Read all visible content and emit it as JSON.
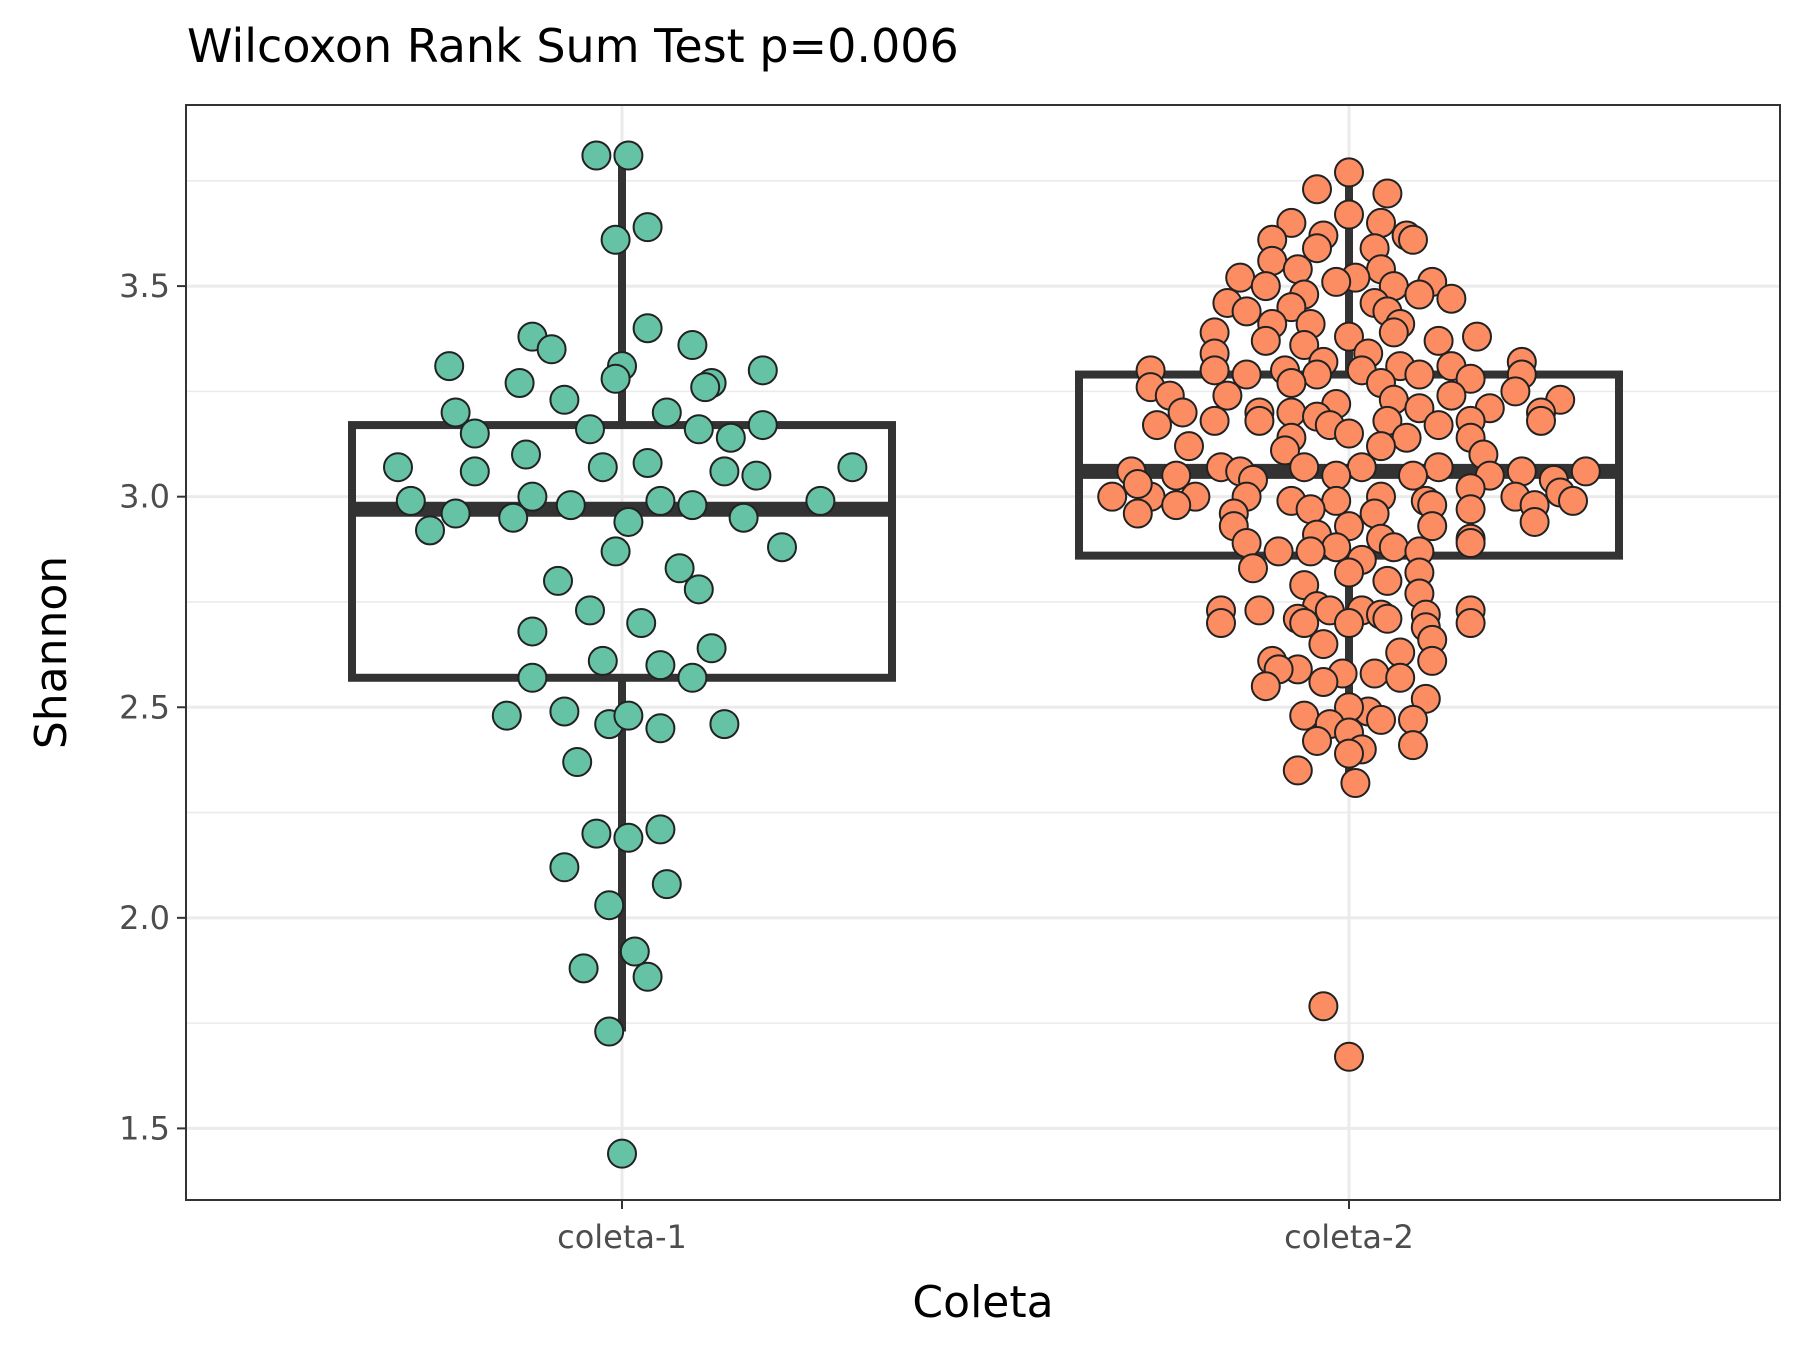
{
  "chart_data": {
    "type": "box",
    "title": "Wilcoxon Rank Sum Test p=0.006",
    "xlabel": "Coleta",
    "ylabel": "Shannon",
    "ylim": [
      1.33,
      3.93
    ],
    "yticks": [
      "1.5",
      "2.0",
      "2.5",
      "3.0",
      "3.5"
    ],
    "grid": true,
    "legend": "none",
    "categories": [
      "coleta-1",
      "coleta-2"
    ],
    "series": [
      {
        "category": "coleta-1",
        "fill_color": "#66c2a5",
        "box": {
          "lower_whisker": 1.73,
          "q1": 2.57,
          "median": 2.97,
          "q3": 3.17,
          "upper_whisker": 3.8
        },
        "points": [
          [
            -0.04,
            3.81
          ],
          [
            0.01,
            3.81
          ],
          [
            0.04,
            3.64
          ],
          [
            -0.01,
            3.61
          ],
          [
            0.04,
            3.4
          ],
          [
            -0.27,
            3.31
          ],
          [
            0.11,
            3.36
          ],
          [
            -0.14,
            3.38
          ],
          [
            -0.11,
            3.35
          ],
          [
            -0.16,
            3.27
          ],
          [
            0.14,
            3.27
          ],
          [
            -0.09,
            3.23
          ],
          [
            0.0,
            3.31
          ],
          [
            -0.01,
            3.28
          ],
          [
            0.22,
            3.3
          ],
          [
            0.22,
            3.17
          ],
          [
            0.13,
            3.26
          ],
          [
            -0.26,
            3.2
          ],
          [
            -0.23,
            3.15
          ],
          [
            0.07,
            3.2
          ],
          [
            -0.05,
            3.16
          ],
          [
            0.12,
            3.16
          ],
          [
            0.21,
            3.05
          ],
          [
            0.17,
            3.14
          ],
          [
            -0.35,
            3.07
          ],
          [
            -0.23,
            3.06
          ],
          [
            -0.15,
            3.1
          ],
          [
            -0.03,
            3.07
          ],
          [
            0.04,
            3.08
          ],
          [
            0.16,
            3.06
          ],
          [
            0.36,
            3.07
          ],
          [
            -0.33,
            2.99
          ],
          [
            -0.3,
            2.92
          ],
          [
            -0.26,
            2.96
          ],
          [
            -0.17,
            2.95
          ],
          [
            -0.14,
            3.0
          ],
          [
            -0.08,
            2.98
          ],
          [
            0.01,
            2.94
          ],
          [
            0.06,
            2.99
          ],
          [
            0.11,
            2.98
          ],
          [
            0.19,
            2.95
          ],
          [
            0.31,
            2.99
          ],
          [
            0.25,
            2.88
          ],
          [
            -0.01,
            2.87
          ],
          [
            0.09,
            2.83
          ],
          [
            0.12,
            2.78
          ],
          [
            -0.1,
            2.8
          ],
          [
            -0.05,
            2.73
          ],
          [
            0.03,
            2.7
          ],
          [
            -0.14,
            2.68
          ],
          [
            0.14,
            2.64
          ],
          [
            -0.03,
            2.61
          ],
          [
            0.06,
            2.6
          ],
          [
            -0.14,
            2.57
          ],
          [
            0.11,
            2.57
          ],
          [
            -0.18,
            2.48
          ],
          [
            -0.09,
            2.49
          ],
          [
            -0.02,
            2.46
          ],
          [
            0.01,
            2.48
          ],
          [
            0.06,
            2.45
          ],
          [
            0.16,
            2.46
          ],
          [
            -0.07,
            2.37
          ],
          [
            -0.04,
            2.2
          ],
          [
            0.01,
            2.19
          ],
          [
            0.06,
            2.21
          ],
          [
            -0.09,
            2.12
          ],
          [
            0.07,
            2.08
          ],
          [
            -0.02,
            2.03
          ],
          [
            0.02,
            1.92
          ],
          [
            -0.06,
            1.88
          ],
          [
            0.04,
            1.86
          ],
          [
            -0.02,
            1.73
          ],
          [
            0.0,
            1.44
          ]
        ]
      },
      {
        "category": "coleta-2",
        "fill_color": "#fc8d62",
        "box": {
          "lower_whisker": 2.32,
          "q1": 2.86,
          "median": 3.06,
          "q3": 3.29,
          "upper_whisker": 3.76
        },
        "points": [
          [
            0.0,
            3.77
          ],
          [
            -0.05,
            3.73
          ],
          [
            0.06,
            3.72
          ],
          [
            -0.09,
            3.65
          ],
          [
            0.0,
            3.67
          ],
          [
            0.05,
            3.65
          ],
          [
            -0.04,
            3.62
          ],
          [
            0.09,
            3.62
          ],
          [
            0.1,
            3.61
          ],
          [
            -0.12,
            3.61
          ],
          [
            0.04,
            3.59
          ],
          [
            -0.05,
            3.59
          ],
          [
            -0.12,
            3.56
          ],
          [
            0.05,
            3.54
          ],
          [
            -0.08,
            3.54
          ],
          [
            -0.17,
            3.52
          ],
          [
            -0.13,
            3.5
          ],
          [
            0.01,
            3.52
          ],
          [
            0.07,
            3.5
          ],
          [
            -0.02,
            3.51
          ],
          [
            0.13,
            3.51
          ],
          [
            0.11,
            3.48
          ],
          [
            -0.07,
            3.48
          ],
          [
            0.16,
            3.47
          ],
          [
            -0.19,
            3.46
          ],
          [
            0.04,
            3.46
          ],
          [
            -0.09,
            3.45
          ],
          [
            0.06,
            3.44
          ],
          [
            -0.16,
            3.44
          ],
          [
            0.08,
            3.41
          ],
          [
            -0.06,
            3.41
          ],
          [
            -0.12,
            3.41
          ],
          [
            0.07,
            3.39
          ],
          [
            -0.21,
            3.39
          ],
          [
            0.2,
            3.38
          ],
          [
            0.0,
            3.38
          ],
          [
            0.14,
            3.37
          ],
          [
            -0.13,
            3.37
          ],
          [
            -0.07,
            3.36
          ],
          [
            0.03,
            3.34
          ],
          [
            -0.21,
            3.34
          ],
          [
            0.27,
            3.32
          ],
          [
            -0.04,
            3.32
          ],
          [
            -0.31,
            3.3
          ],
          [
            0.08,
            3.31
          ],
          [
            0.16,
            3.31
          ],
          [
            -0.21,
            3.3
          ],
          [
            -0.1,
            3.3
          ],
          [
            0.02,
            3.3
          ],
          [
            0.11,
            3.29
          ],
          [
            0.27,
            3.29
          ],
          [
            -0.16,
            3.29
          ],
          [
            0.19,
            3.28
          ],
          [
            -0.05,
            3.29
          ],
          [
            -0.31,
            3.26
          ],
          [
            0.05,
            3.27
          ],
          [
            -0.09,
            3.27
          ],
          [
            0.26,
            3.25
          ],
          [
            0.33,
            3.23
          ],
          [
            -0.28,
            3.24
          ],
          [
            -0.19,
            3.24
          ],
          [
            0.16,
            3.24
          ],
          [
            0.07,
            3.23
          ],
          [
            0.3,
            3.2
          ],
          [
            -0.14,
            3.2
          ],
          [
            -0.02,
            3.22
          ],
          [
            0.11,
            3.21
          ],
          [
            -0.09,
            3.2
          ],
          [
            0.22,
            3.21
          ],
          [
            -0.26,
            3.2
          ],
          [
            0.19,
            3.18
          ],
          [
            -0.05,
            3.19
          ],
          [
            0.06,
            3.18
          ],
          [
            0.3,
            3.18
          ],
          [
            -0.3,
            3.17
          ],
          [
            0.14,
            3.17
          ],
          [
            -0.14,
            3.18
          ],
          [
            -0.21,
            3.18
          ],
          [
            -0.03,
            3.17
          ],
          [
            0.19,
            3.14
          ],
          [
            0.0,
            3.15
          ],
          [
            -0.09,
            3.14
          ],
          [
            0.09,
            3.14
          ],
          [
            0.05,
            3.12
          ],
          [
            0.21,
            3.1
          ],
          [
            -0.25,
            3.12
          ],
          [
            -0.1,
            3.11
          ],
          [
            -0.34,
            3.06
          ],
          [
            -0.2,
            3.07
          ],
          [
            -0.17,
            3.06
          ],
          [
            -0.07,
            3.07
          ],
          [
            0.02,
            3.07
          ],
          [
            0.14,
            3.07
          ],
          [
            0.27,
            3.06
          ],
          [
            0.37,
            3.06
          ],
          [
            -0.27,
            3.05
          ],
          [
            -0.15,
            3.04
          ],
          [
            -0.02,
            3.05
          ],
          [
            0.1,
            3.05
          ],
          [
            0.22,
            3.05
          ],
          [
            0.32,
            3.04
          ],
          [
            -0.37,
            3.0
          ],
          [
            -0.31,
            3.0
          ],
          [
            -0.24,
            3.0
          ],
          [
            -0.16,
            3.0
          ],
          [
            -0.09,
            2.99
          ],
          [
            -0.02,
            2.99
          ],
          [
            0.05,
            3.0
          ],
          [
            0.12,
            2.99
          ],
          [
            0.19,
            3.02
          ],
          [
            0.26,
            3.0
          ],
          [
            0.33,
            3.01
          ],
          [
            0.35,
            2.99
          ],
          [
            -0.33,
            3.03
          ],
          [
            -0.27,
            2.98
          ],
          [
            -0.18,
            2.96
          ],
          [
            -0.06,
            2.97
          ],
          [
            0.04,
            2.96
          ],
          [
            0.13,
            2.98
          ],
          [
            0.19,
            2.97
          ],
          [
            0.29,
            2.98
          ],
          [
            -0.33,
            2.96
          ],
          [
            0.29,
            2.94
          ],
          [
            -0.18,
            2.93
          ],
          [
            -0.05,
            2.91
          ],
          [
            0.0,
            2.93
          ],
          [
            0.05,
            2.9
          ],
          [
            0.13,
            2.93
          ],
          [
            0.19,
            2.9
          ],
          [
            -0.16,
            2.89
          ],
          [
            -0.02,
            2.88
          ],
          [
            0.07,
            2.88
          ],
          [
            0.19,
            2.89
          ],
          [
            -0.11,
            2.87
          ],
          [
            0.11,
            2.87
          ],
          [
            -0.06,
            2.87
          ],
          [
            0.02,
            2.85
          ],
          [
            -0.15,
            2.83
          ],
          [
            0.0,
            2.82
          ],
          [
            0.11,
            2.82
          ],
          [
            0.06,
            2.8
          ],
          [
            -0.07,
            2.79
          ],
          [
            -0.14,
            2.73
          ],
          [
            -0.05,
            2.74
          ],
          [
            -0.03,
            2.73
          ],
          [
            0.02,
            2.73
          ],
          [
            0.05,
            2.72
          ],
          [
            0.11,
            2.77
          ],
          [
            0.12,
            2.72
          ],
          [
            -0.2,
            2.73
          ],
          [
            -0.08,
            2.71
          ],
          [
            0.06,
            2.71
          ],
          [
            0.12,
            2.69
          ],
          [
            0.19,
            2.73
          ],
          [
            -0.2,
            2.7
          ],
          [
            0.19,
            2.7
          ],
          [
            0.0,
            2.7
          ],
          [
            -0.07,
            2.7
          ],
          [
            0.13,
            2.66
          ],
          [
            -0.04,
            2.65
          ],
          [
            0.08,
            2.63
          ],
          [
            0.13,
            2.61
          ],
          [
            -0.12,
            2.61
          ],
          [
            -0.08,
            2.59
          ],
          [
            0.04,
            2.58
          ],
          [
            -0.01,
            2.58
          ],
          [
            -0.11,
            2.59
          ],
          [
            0.08,
            2.57
          ],
          [
            -0.04,
            2.56
          ],
          [
            -0.13,
            2.55
          ],
          [
            0.12,
            2.52
          ],
          [
            0.03,
            2.49
          ],
          [
            0.0,
            2.5
          ],
          [
            -0.07,
            2.48
          ],
          [
            0.05,
            2.47
          ],
          [
            -0.03,
            2.46
          ],
          [
            0.0,
            2.44
          ],
          [
            0.1,
            2.47
          ],
          [
            -0.05,
            2.42
          ],
          [
            0.02,
            2.4
          ],
          [
            0.0,
            2.39
          ],
          [
            -0.08,
            2.35
          ],
          [
            0.01,
            2.32
          ],
          [
            0.1,
            2.41
          ],
          [
            -0.04,
            1.79
          ],
          [
            0.0,
            1.67
          ]
        ]
      }
    ]
  }
}
